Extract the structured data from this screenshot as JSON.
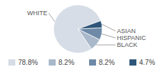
{
  "chart_data": {
    "type": "pie",
    "categories": [
      "WHITE",
      "BLACK",
      "HISPANIC",
      "ASIAN"
    ],
    "values": [
      78.8,
      8.2,
      8.2,
      4.7
    ],
    "value_labels": [
      "78.8%",
      "8.2%",
      "8.2%",
      "4.7%"
    ],
    "colors": [
      "#d6dde6",
      "#a9b8ca",
      "#6e8aa8",
      "#2f5679"
    ],
    "legend": "bottom"
  }
}
